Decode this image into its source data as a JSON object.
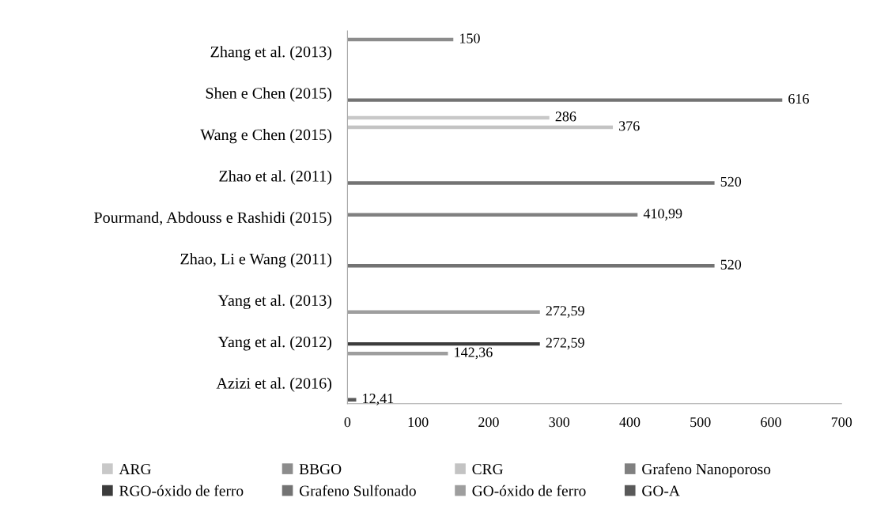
{
  "chart_data": {
    "type": "bar",
    "orientation": "horizontal",
    "categories": [
      "Zhang et al. (2013)",
      "Shen e Chen (2015)",
      "Wang e Chen (2015)",
      "Zhao et al. (2011)",
      "Pourmand, Abdouss e Rashidi (2015)",
      "Zhao, Li e Wang (2011)",
      "Yang et al. (2013)",
      "Yang et al. (2012)",
      "Azizi et al. (2016)"
    ],
    "series": [
      {
        "name": "ARG",
        "color": "#c8c8c8",
        "values": [
          null,
          null,
          286,
          null,
          null,
          null,
          null,
          null,
          null
        ],
        "value_labels": [
          null,
          null,
          "286",
          null,
          null,
          null,
          null,
          null,
          null
        ]
      },
      {
        "name": "BBGO",
        "color": "#8c8c8c",
        "values": [
          150,
          null,
          null,
          null,
          null,
          null,
          null,
          null,
          null
        ],
        "value_labels": [
          "150",
          null,
          null,
          null,
          null,
          null,
          null,
          null,
          null
        ]
      },
      {
        "name": "CRG",
        "color": "#c3c3c3",
        "values": [
          null,
          null,
          376,
          null,
          null,
          null,
          null,
          null,
          null
        ],
        "value_labels": [
          null,
          null,
          "376",
          null,
          null,
          null,
          null,
          null,
          null
        ]
      },
      {
        "name": "Grafeno Nanoporoso",
        "color": "#808080",
        "values": [
          null,
          null,
          null,
          null,
          410.99,
          null,
          null,
          null,
          null
        ],
        "value_labels": [
          null,
          null,
          null,
          null,
          "410,99",
          null,
          null,
          null,
          null
        ]
      },
      {
        "name": "RGO-óxido de ferro",
        "color": "#3c3c3c",
        "values": [
          null,
          null,
          null,
          null,
          null,
          null,
          null,
          272.59,
          null
        ],
        "value_labels": [
          null,
          null,
          null,
          null,
          null,
          null,
          null,
          "272,59",
          null
        ]
      },
      {
        "name": "Grafeno Sulfonado",
        "color": "#737373",
        "values": [
          null,
          616,
          null,
          520,
          null,
          520,
          null,
          null,
          null
        ],
        "value_labels": [
          null,
          "616",
          null,
          "520",
          null,
          "520",
          null,
          null,
          null
        ]
      },
      {
        "name": "GO-óxido de ferro",
        "color": "#9e9e9e",
        "values": [
          null,
          null,
          null,
          null,
          null,
          null,
          272.59,
          142.36,
          null
        ],
        "value_labels": [
          null,
          null,
          null,
          null,
          null,
          null,
          "272,59",
          "142,36",
          null
        ]
      },
      {
        "name": "GO-A",
        "color": "#595959",
        "values": [
          null,
          null,
          null,
          null,
          null,
          null,
          null,
          null,
          12.41
        ],
        "value_labels": [
          null,
          null,
          null,
          null,
          null,
          null,
          null,
          null,
          "12,41"
        ]
      }
    ],
    "xlim": [
      0,
      700
    ],
    "xticks": [
      0,
      100,
      200,
      300,
      400,
      500,
      600,
      700
    ],
    "grid": false,
    "legend": "bottom"
  }
}
